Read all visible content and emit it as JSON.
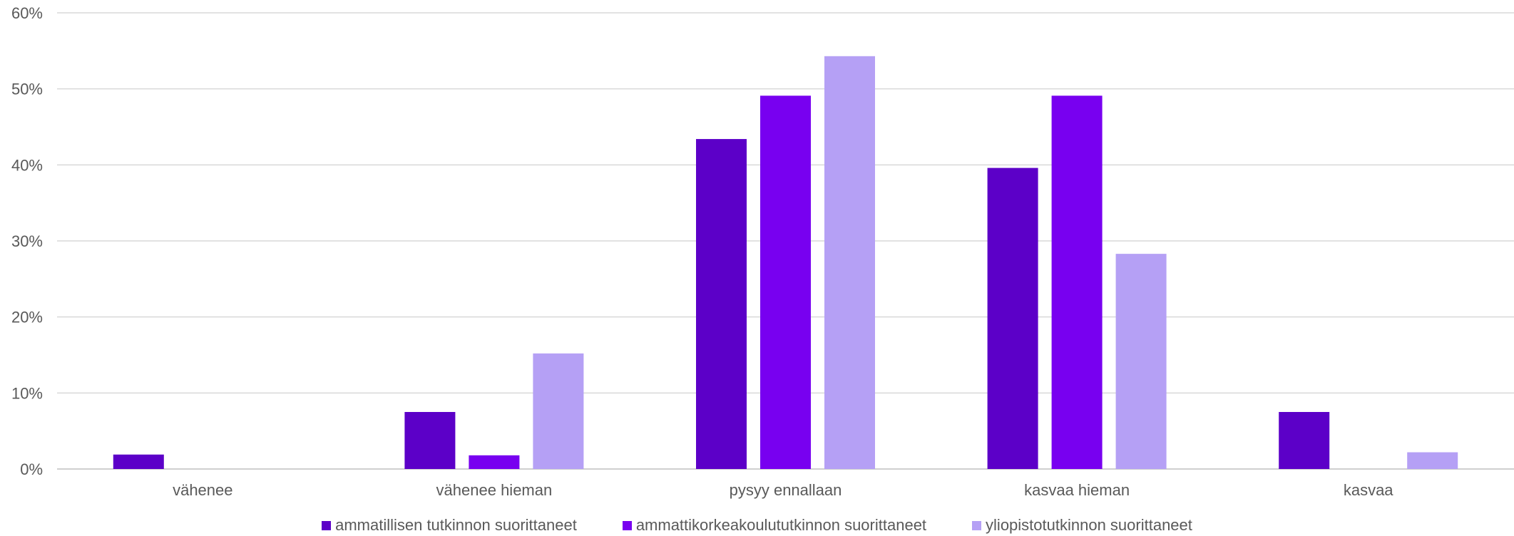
{
  "chart_data": {
    "type": "bar",
    "categories": [
      "vähenee",
      "vähenee hieman",
      "pysyy ennallaan",
      "kasvaa hieman",
      "kasvaa"
    ],
    "series": [
      {
        "name": "ammatillisen tutkinnon suorittaneet",
        "color": "#5c00c8",
        "values": [
          1.9,
          7.5,
          43.4,
          39.6,
          7.5
        ]
      },
      {
        "name": "ammattikorkeakoulututkinnon suorittaneet",
        "color": "#7800f0",
        "values": [
          0,
          1.8,
          49.1,
          49.1,
          0
        ]
      },
      {
        "name": "yliopistotutkinnon suorittaneet",
        "color": "#b5a0f5",
        "values": [
          0,
          15.2,
          54.3,
          28.3,
          2.2
        ]
      }
    ],
    "yticks": [
      "0%",
      "10%",
      "20%",
      "30%",
      "40%",
      "50%",
      "60%"
    ],
    "ylim": [
      0,
      60
    ],
    "grid": true,
    "legend_position": "bottom"
  }
}
